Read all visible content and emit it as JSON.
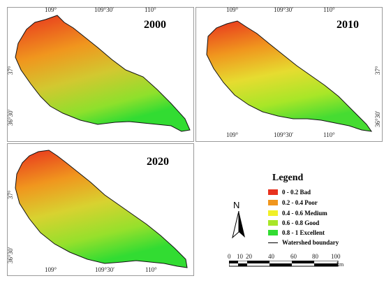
{
  "panels": [
    {
      "year": "2000",
      "top_ticks": [
        "109°",
        "109°30′",
        "110°"
      ],
      "left_ticks": [
        "37°",
        "36°30′"
      ]
    },
    {
      "year": "2010",
      "top_ticks": [
        "109°",
        "109°30′",
        "110°"
      ],
      "bottom_ticks": [
        "109°",
        "109°30′",
        "110°"
      ],
      "right_ticks": [
        "37°",
        "36°30′"
      ]
    },
    {
      "year": "2020",
      "left_ticks": [
        "37°",
        "36°30′"
      ],
      "bottom_ticks": [
        "109°",
        "109°30′",
        "110°"
      ]
    }
  ],
  "legend": {
    "title": "Legend",
    "items": [
      {
        "label": "0 - 0.2  Bad",
        "color": "#e8321e"
      },
      {
        "label": "0.2 - 0.4  Poor",
        "color": "#f0961e"
      },
      {
        "label": "0.4 - 0.6  Medium",
        "color": "#f0f028"
      },
      {
        "label": "0.6 - 0.8  Good",
        "color": "#a8e628"
      },
      {
        "label": "0.8 - 1  Excellent",
        "color": "#32dc32"
      }
    ],
    "boundary_label": "Watershed boundary"
  },
  "north_arrow": {
    "label": "N"
  },
  "scale_bar": {
    "labels": [
      "0",
      "10",
      "20",
      "40",
      "60",
      "80",
      "100"
    ],
    "unit": "km"
  }
}
